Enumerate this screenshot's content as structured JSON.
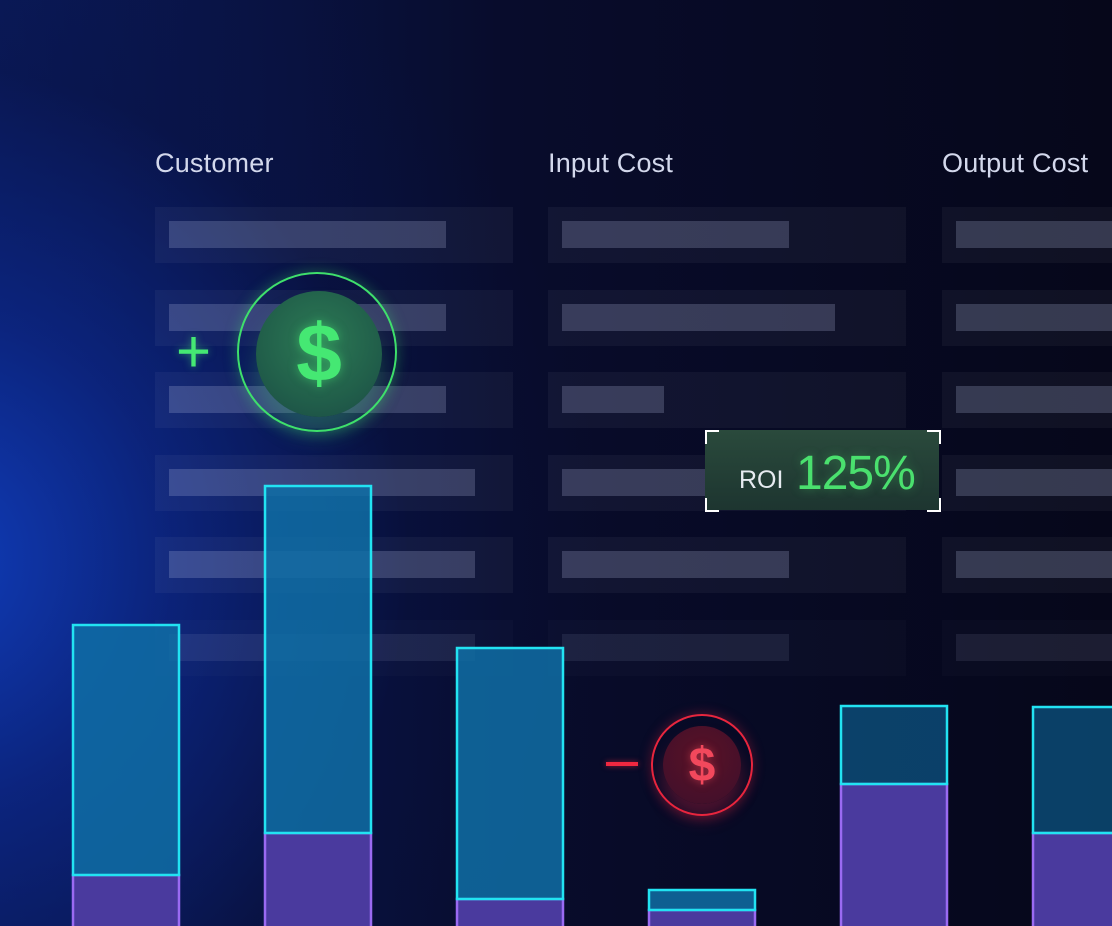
{
  "table": {
    "headers": [
      "Customer",
      "Input Cost",
      "Output Cost"
    ],
    "row_count": 6
  },
  "roi": {
    "label": "ROI",
    "value": "125%"
  },
  "badges": {
    "gain_icon": "dollar-icon",
    "gain_symbol": "$",
    "gain_sign": "+",
    "loss_icon": "dollar-icon",
    "loss_symbol": "$"
  },
  "colors": {
    "gain": "#45e873",
    "loss": "#f02840",
    "bar_top_fill": "#0f6fa6",
    "bar_top_stroke": "#22e3f2",
    "bar_bottom_fill": "#4a3a9e",
    "bar_bottom_stroke": "#9a6af2"
  },
  "chart_data": {
    "type": "bar",
    "stacked": true,
    "categories": [
      "",
      "",
      "",
      "",
      "",
      ""
    ],
    "series": [
      {
        "values": [
          51,
          93,
          27,
          16,
          142,
          93
        ]
      },
      {
        "values": [
          250,
          347,
          251,
          20,
          78,
          126
        ]
      }
    ],
    "ylim": [
      0,
      460
    ],
    "grid": false,
    "axes_visible": false
  }
}
